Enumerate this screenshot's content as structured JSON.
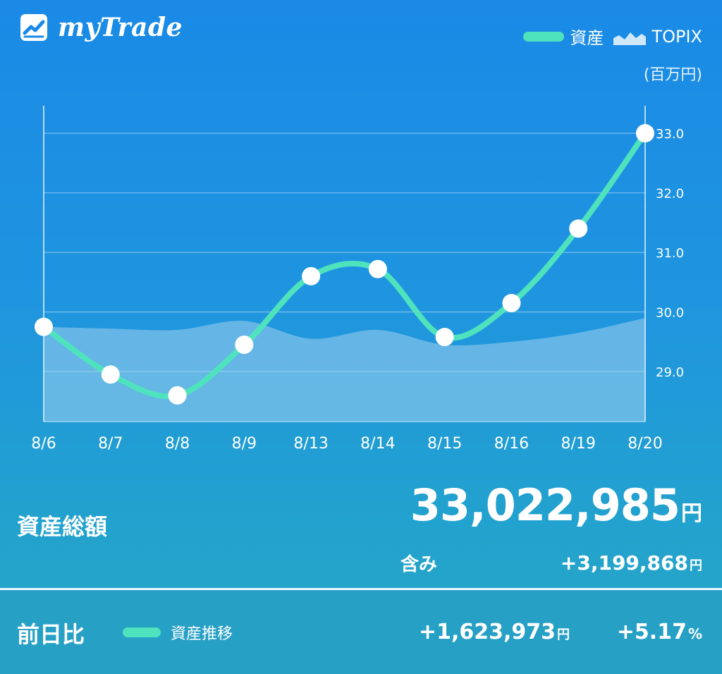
{
  "header": {
    "app_name": "myTrade",
    "legend": {
      "assets_label": "資産",
      "topix_label": "TOPIX"
    },
    "unit_label": "(百万円)"
  },
  "chart_data": {
    "type": "line",
    "categories": [
      "8/6",
      "8/7",
      "8/8",
      "8/9",
      "8/13",
      "8/14",
      "8/15",
      "8/16",
      "8/19",
      "8/20"
    ],
    "series": [
      {
        "name": "資産",
        "values": [
          29.75,
          28.95,
          28.6,
          29.45,
          30.6,
          30.72,
          29.58,
          30.15,
          31.4,
          33.0
        ]
      },
      {
        "name": "TOPIX",
        "values": [
          29.75,
          29.72,
          29.7,
          29.85,
          29.55,
          29.7,
          29.45,
          29.5,
          29.65,
          29.9
        ]
      }
    ],
    "yticks": [
      "29.0",
      "30.0",
      "31.0",
      "32.0",
      "33.0"
    ],
    "ylim": [
      28.15,
      33.5
    ],
    "colors": {
      "assets": "#4fe3bd",
      "topix": "#9fd0ef"
    },
    "grid": true
  },
  "summary": {
    "total_label": "資産総額",
    "total_value": "33,022,985",
    "currency": "円",
    "includes_label": "含み",
    "includes_value": "+3,199,868"
  },
  "footer": {
    "prev_day_label": "前日比",
    "trend_label": "資産推移",
    "change_abs": "+1,623,973",
    "change_pct": "+5.17",
    "pct_sign": "%"
  }
}
